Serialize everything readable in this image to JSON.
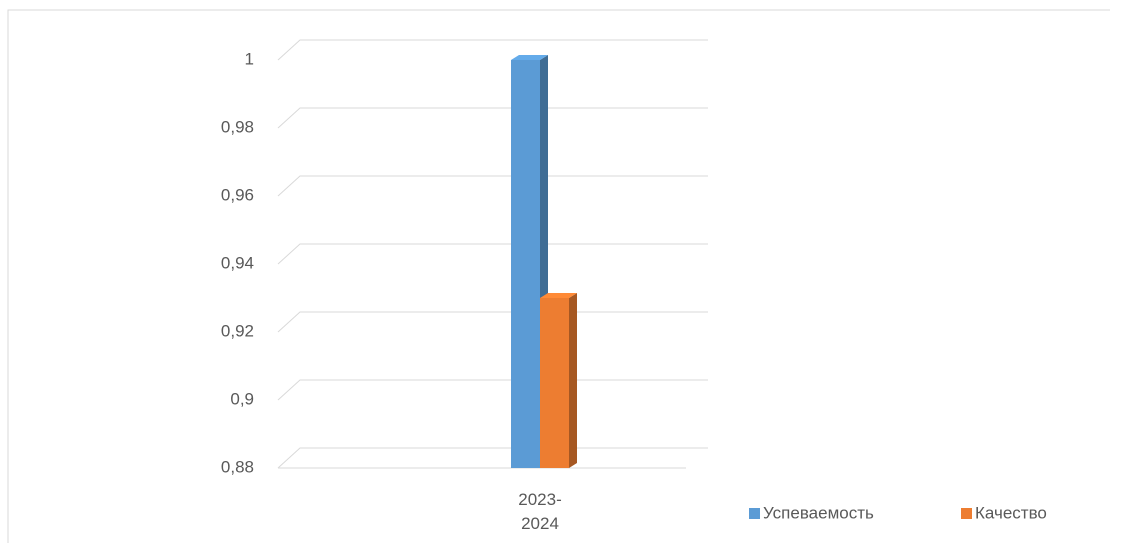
{
  "chart_data": {
    "type": "bar3d",
    "categories": [
      "2023-2024"
    ],
    "series": [
      {
        "name": "Успеваемость",
        "color": "#5b9bd5",
        "values": [
          1
        ]
      },
      {
        "name": "Качество",
        "color": "#ed7d31",
        "values": [
          0.93
        ]
      }
    ],
    "ylim": [
      0.88,
      1
    ],
    "yticks": [
      {
        "value": 0.88,
        "label": "0,88"
      },
      {
        "value": 0.9,
        "label": "0,9"
      },
      {
        "value": 0.92,
        "label": "0,92"
      },
      {
        "value": 0.94,
        "label": "0,94"
      },
      {
        "value": 0.96,
        "label": "0,96"
      },
      {
        "value": 0.98,
        "label": "0,98"
      },
      1
    ],
    "grid": true,
    "legend": "bottom-right"
  }
}
